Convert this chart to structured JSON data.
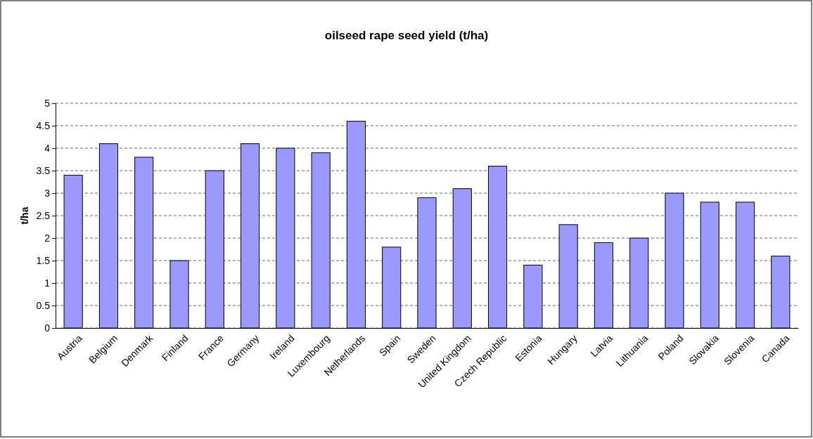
{
  "chart_data": {
    "type": "bar",
    "title": "oilseed rape seed yield (t/ha)",
    "ylabel": "t/ha",
    "categories": [
      "Austria",
      "Belgium",
      "Denmark",
      "Finland",
      "France",
      "Germany",
      "Ireland",
      "Luxembourg",
      "Netherlands",
      "Spain",
      "Sweden",
      "United Kingdom",
      "Czech Republic",
      "Estonia",
      "Hungary",
      "Latvia",
      "Lithuania",
      "Poland",
      "Slovakia",
      "Slovenia",
      "Canada"
    ],
    "values": [
      3.4,
      4.1,
      3.8,
      1.5,
      3.5,
      4.1,
      4.0,
      3.9,
      4.6,
      1.8,
      2.9,
      3.1,
      3.6,
      1.4,
      2.3,
      1.9,
      2.0,
      3.0,
      2.8,
      2.8,
      1.6
    ],
    "color": "#9999ff",
    "ylim": [
      0,
      5
    ],
    "yticks": [
      0,
      0.5,
      1,
      1.5,
      2,
      2.5,
      3,
      3.5,
      4,
      4.5,
      5
    ],
    "grid": "y"
  }
}
